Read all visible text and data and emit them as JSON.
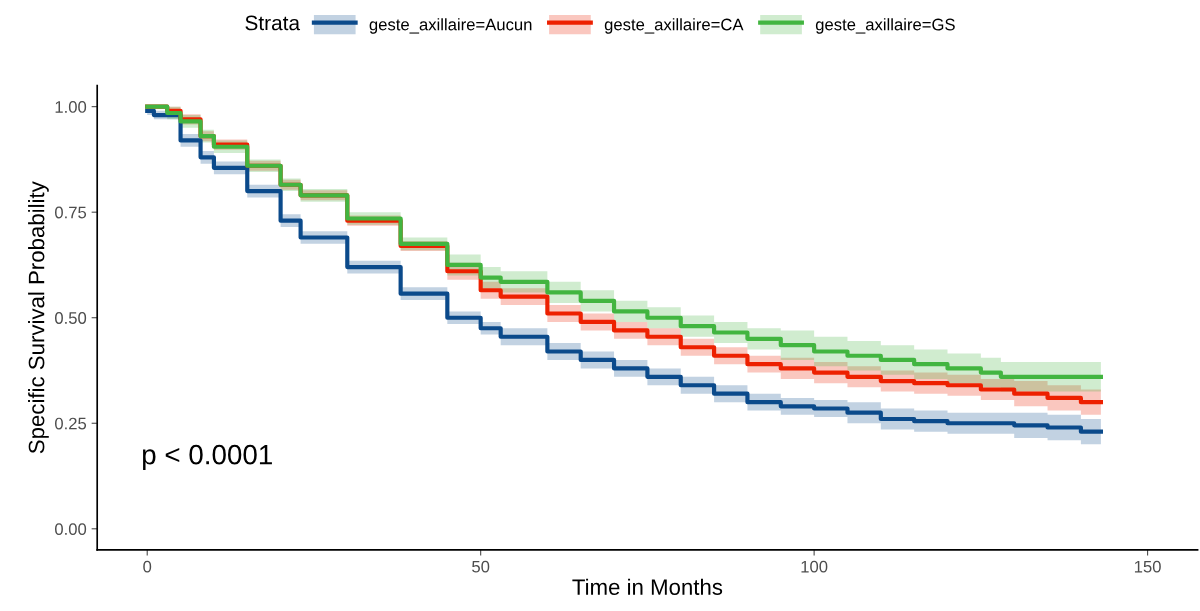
{
  "chart_data": {
    "type": "step",
    "xlabel": "Time in Months",
    "ylabel": "Specific Survival Probability",
    "legend_title": "Strata",
    "legend": "top",
    "grid": false,
    "annotations": [
      "p < 0.0001"
    ],
    "xlim": [
      -7.5,
      157.5
    ],
    "xticks": [
      0,
      50,
      100,
      150
    ],
    "ylim": [
      -0.05,
      1.05
    ],
    "yticks": [
      {
        "value": 0,
        "label": "0.00"
      },
      {
        "value": 0.25,
        "label": "0.25"
      },
      {
        "value": 0.5,
        "label": "0.50"
      },
      {
        "value": 0.75,
        "label": "0.75"
      },
      {
        "value": 1,
        "label": "1.00"
      }
    ],
    "series": [
      {
        "name": "geste_axillaire=Aucun",
        "color": "#0b4a8b",
        "x": [
          0,
          1,
          5,
          8,
          10,
          15,
          20,
          23,
          30,
          38,
          45,
          50,
          53,
          60,
          65,
          70,
          75,
          80,
          85,
          90,
          95,
          100,
          105,
          110,
          115,
          120,
          125,
          130,
          135,
          140,
          143
        ],
        "values": [
          0.99,
          0.98,
          0.92,
          0.88,
          0.855,
          0.8,
          0.73,
          0.69,
          0.62,
          0.557,
          0.5,
          0.475,
          0.455,
          0.42,
          0.4,
          0.38,
          0.36,
          0.34,
          0.32,
          0.3,
          0.29,
          0.285,
          0.275,
          0.26,
          0.255,
          0.25,
          0.25,
          0.245,
          0.24,
          0.23,
          0.23
        ],
        "lower": [
          0.98,
          0.97,
          0.905,
          0.865,
          0.84,
          0.785,
          0.715,
          0.675,
          0.605,
          0.542,
          0.485,
          0.46,
          0.435,
          0.4,
          0.38,
          0.36,
          0.34,
          0.32,
          0.3,
          0.28,
          0.27,
          0.265,
          0.25,
          0.235,
          0.23,
          0.225,
          0.225,
          0.215,
          0.21,
          0.2,
          0.2
        ],
        "upper": [
          1.0,
          0.99,
          0.935,
          0.895,
          0.87,
          0.815,
          0.745,
          0.705,
          0.635,
          0.572,
          0.515,
          0.49,
          0.475,
          0.44,
          0.42,
          0.4,
          0.38,
          0.36,
          0.34,
          0.32,
          0.31,
          0.305,
          0.3,
          0.285,
          0.28,
          0.275,
          0.275,
          0.275,
          0.27,
          0.26,
          0.26
        ]
      },
      {
        "name": "geste_axillaire=CA",
        "color": "#ed2000",
        "x": [
          0,
          3,
          5,
          8,
          10,
          15,
          20,
          23,
          30,
          38,
          45,
          50,
          53,
          60,
          65,
          70,
          75,
          80,
          85,
          90,
          95,
          100,
          105,
          110,
          115,
          120,
          125,
          130,
          135,
          140,
          143
        ],
        "values": [
          1.0,
          0.99,
          0.97,
          0.93,
          0.91,
          0.86,
          0.815,
          0.79,
          0.73,
          0.67,
          0.61,
          0.565,
          0.55,
          0.51,
          0.49,
          0.47,
          0.455,
          0.43,
          0.41,
          0.39,
          0.38,
          0.37,
          0.36,
          0.35,
          0.345,
          0.34,
          0.33,
          0.32,
          0.31,
          0.3,
          0.3
        ],
        "lower": [
          1.0,
          0.98,
          0.958,
          0.918,
          0.898,
          0.848,
          0.803,
          0.778,
          0.718,
          0.658,
          0.59,
          0.545,
          0.53,
          0.49,
          0.47,
          0.45,
          0.435,
          0.41,
          0.39,
          0.37,
          0.355,
          0.345,
          0.335,
          0.325,
          0.32,
          0.315,
          0.305,
          0.29,
          0.28,
          0.27,
          0.27
        ],
        "upper": [
          1.0,
          1.0,
          0.982,
          0.942,
          0.922,
          0.872,
          0.827,
          0.802,
          0.742,
          0.682,
          0.63,
          0.585,
          0.57,
          0.53,
          0.51,
          0.49,
          0.475,
          0.45,
          0.43,
          0.41,
          0.405,
          0.395,
          0.385,
          0.375,
          0.37,
          0.365,
          0.355,
          0.35,
          0.34,
          0.33,
          0.33
        ]
      },
      {
        "name": "geste_axillaire=GS",
        "color": "#42b540",
        "x": [
          0,
          3,
          5,
          8,
          10,
          15,
          20,
          23,
          30,
          38,
          45,
          50,
          53,
          60,
          65,
          70,
          75,
          80,
          85,
          90,
          95,
          100,
          105,
          110,
          115,
          120,
          125,
          128,
          135,
          143
        ],
        "values": [
          1.0,
          0.985,
          0.965,
          0.93,
          0.905,
          0.86,
          0.815,
          0.79,
          0.735,
          0.675,
          0.625,
          0.595,
          0.585,
          0.56,
          0.54,
          0.515,
          0.5,
          0.48,
          0.465,
          0.45,
          0.435,
          0.42,
          0.41,
          0.4,
          0.39,
          0.38,
          0.37,
          0.36,
          0.36,
          0.36
        ],
        "lower": [
          1.0,
          0.97,
          0.95,
          0.915,
          0.89,
          0.845,
          0.8,
          0.775,
          0.72,
          0.66,
          0.6,
          0.57,
          0.56,
          0.535,
          0.515,
          0.49,
          0.475,
          0.455,
          0.44,
          0.425,
          0.4,
          0.385,
          0.375,
          0.365,
          0.355,
          0.345,
          0.335,
          0.325,
          0.325,
          0.325
        ],
        "upper": [
          1.0,
          1.0,
          0.98,
          0.945,
          0.92,
          0.875,
          0.83,
          0.805,
          0.75,
          0.69,
          0.65,
          0.62,
          0.61,
          0.585,
          0.565,
          0.54,
          0.525,
          0.505,
          0.49,
          0.475,
          0.47,
          0.455,
          0.445,
          0.435,
          0.425,
          0.415,
          0.405,
          0.395,
          0.395,
          0.395
        ]
      }
    ]
  }
}
